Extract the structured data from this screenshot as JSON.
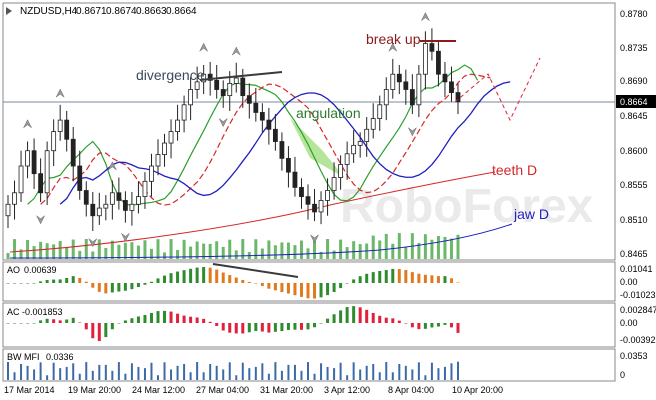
{
  "header": {
    "symbol": "NZDUSD,H4",
    "open": "0.8671",
    "high": "0.8674",
    "low": "0.8663",
    "close": "0.8664"
  },
  "watermark": "RoboForex",
  "chart_data": {
    "type": "candlestick",
    "price_ticks": [
      "0.8780",
      "0.8735",
      "0.8690",
      "0.8645",
      "0.8600",
      "0.8555",
      "0.8510",
      "0.8465"
    ],
    "current_price": "0.8664",
    "x_labels": [
      "17 Mar 2014",
      "19 Mar 20:00",
      "24 Mar 12:00",
      "27 Mar 04:00",
      "31 Mar 20:00",
      "3 Apr 12:00",
      "8 Apr 04:00",
      "10 Apr 20:00"
    ],
    "annotations": [
      "divergence",
      "angulation",
      "break up",
      "teeth D",
      "jaw D"
    ],
    "closes": [
      0.853,
      0.8545,
      0.858,
      0.86,
      0.857,
      0.8545,
      0.86,
      0.8625,
      0.864,
      0.8615,
      0.858,
      0.8548,
      0.853,
      0.8515,
      0.8525,
      0.853,
      0.8545,
      0.8535,
      0.8522,
      0.853,
      0.854,
      0.856,
      0.858,
      0.8595,
      0.861,
      0.8625,
      0.864,
      0.866,
      0.868,
      0.869,
      0.87,
      0.8692,
      0.868,
      0.8672,
      0.8688,
      0.8695,
      0.8672,
      0.8662,
      0.865,
      0.864,
      0.8628,
      0.8612,
      0.859,
      0.8572,
      0.8552,
      0.854,
      0.853,
      0.852,
      0.8535,
      0.8548,
      0.8565,
      0.8582,
      0.8596,
      0.8607,
      0.8612,
      0.8628,
      0.8642,
      0.866,
      0.868,
      0.87,
      0.869,
      0.868,
      0.866,
      0.87,
      0.874,
      0.873,
      0.87,
      0.869,
      0.8676,
      0.8664
    ],
    "indicators": [
      {
        "name": "AO",
        "value": "0.00639",
        "ticks": [
          "0.01041",
          "0.00",
          "-0.01023"
        ]
      },
      {
        "name": "AC",
        "value": "-0.001853",
        "ticks": [
          "0.002847",
          "0.00",
          "-0.00392"
        ]
      },
      {
        "name": "BW MFI",
        "value": "0.0336",
        "ticks": [
          "0.0353",
          "0"
        ]
      }
    ]
  },
  "colors": {
    "bull_candle": "#333333",
    "bear_candle": "#333333",
    "lips": "#2ca02c",
    "teeth": "#d62728",
    "jaw": "#1f1fbf",
    "ao_up": "#2e8b2e",
    "ao_down": "#e07a1f",
    "ac_up": "#2e8b2e",
    "ac_down": "#e0203c",
    "mfi": "#3a6aa8",
    "divergence_line": "#3a3a3a",
    "break_line": "#8b1a1a",
    "forecast": "#e0203c",
    "angulation_fill": "#9bdc7a"
  }
}
